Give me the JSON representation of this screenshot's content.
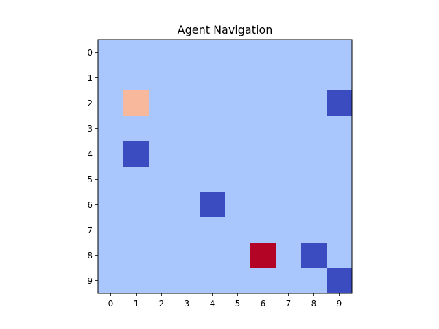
{
  "title": "Agent Navigation",
  "chart_data": {
    "type": "heatmap",
    "title": "Agent Navigation",
    "xlabel": "",
    "ylabel": "",
    "grid": false,
    "x_ticks": [
      "0",
      "1",
      "2",
      "3",
      "4",
      "5",
      "6",
      "7",
      "8",
      "9"
    ],
    "y_ticks": [
      "0",
      "1",
      "2",
      "3",
      "4",
      "5",
      "6",
      "7",
      "8",
      "9"
    ],
    "colormap": "coolwarm",
    "cell_colors": {
      "empty": "#aac7fd",
      "obstacle": "#3b4cc0",
      "agent": "#f7b89c",
      "goal": "#b40426"
    },
    "cells": [
      {
        "row": 2,
        "col": 1,
        "kind": "agent"
      },
      {
        "row": 2,
        "col": 9,
        "kind": "obstacle"
      },
      {
        "row": 4,
        "col": 1,
        "kind": "obstacle"
      },
      {
        "row": 6,
        "col": 4,
        "kind": "obstacle"
      },
      {
        "row": 8,
        "col": 6,
        "kind": "goal"
      },
      {
        "row": 8,
        "col": 8,
        "kind": "obstacle"
      },
      {
        "row": 9,
        "col": 9,
        "kind": "obstacle"
      }
    ]
  }
}
